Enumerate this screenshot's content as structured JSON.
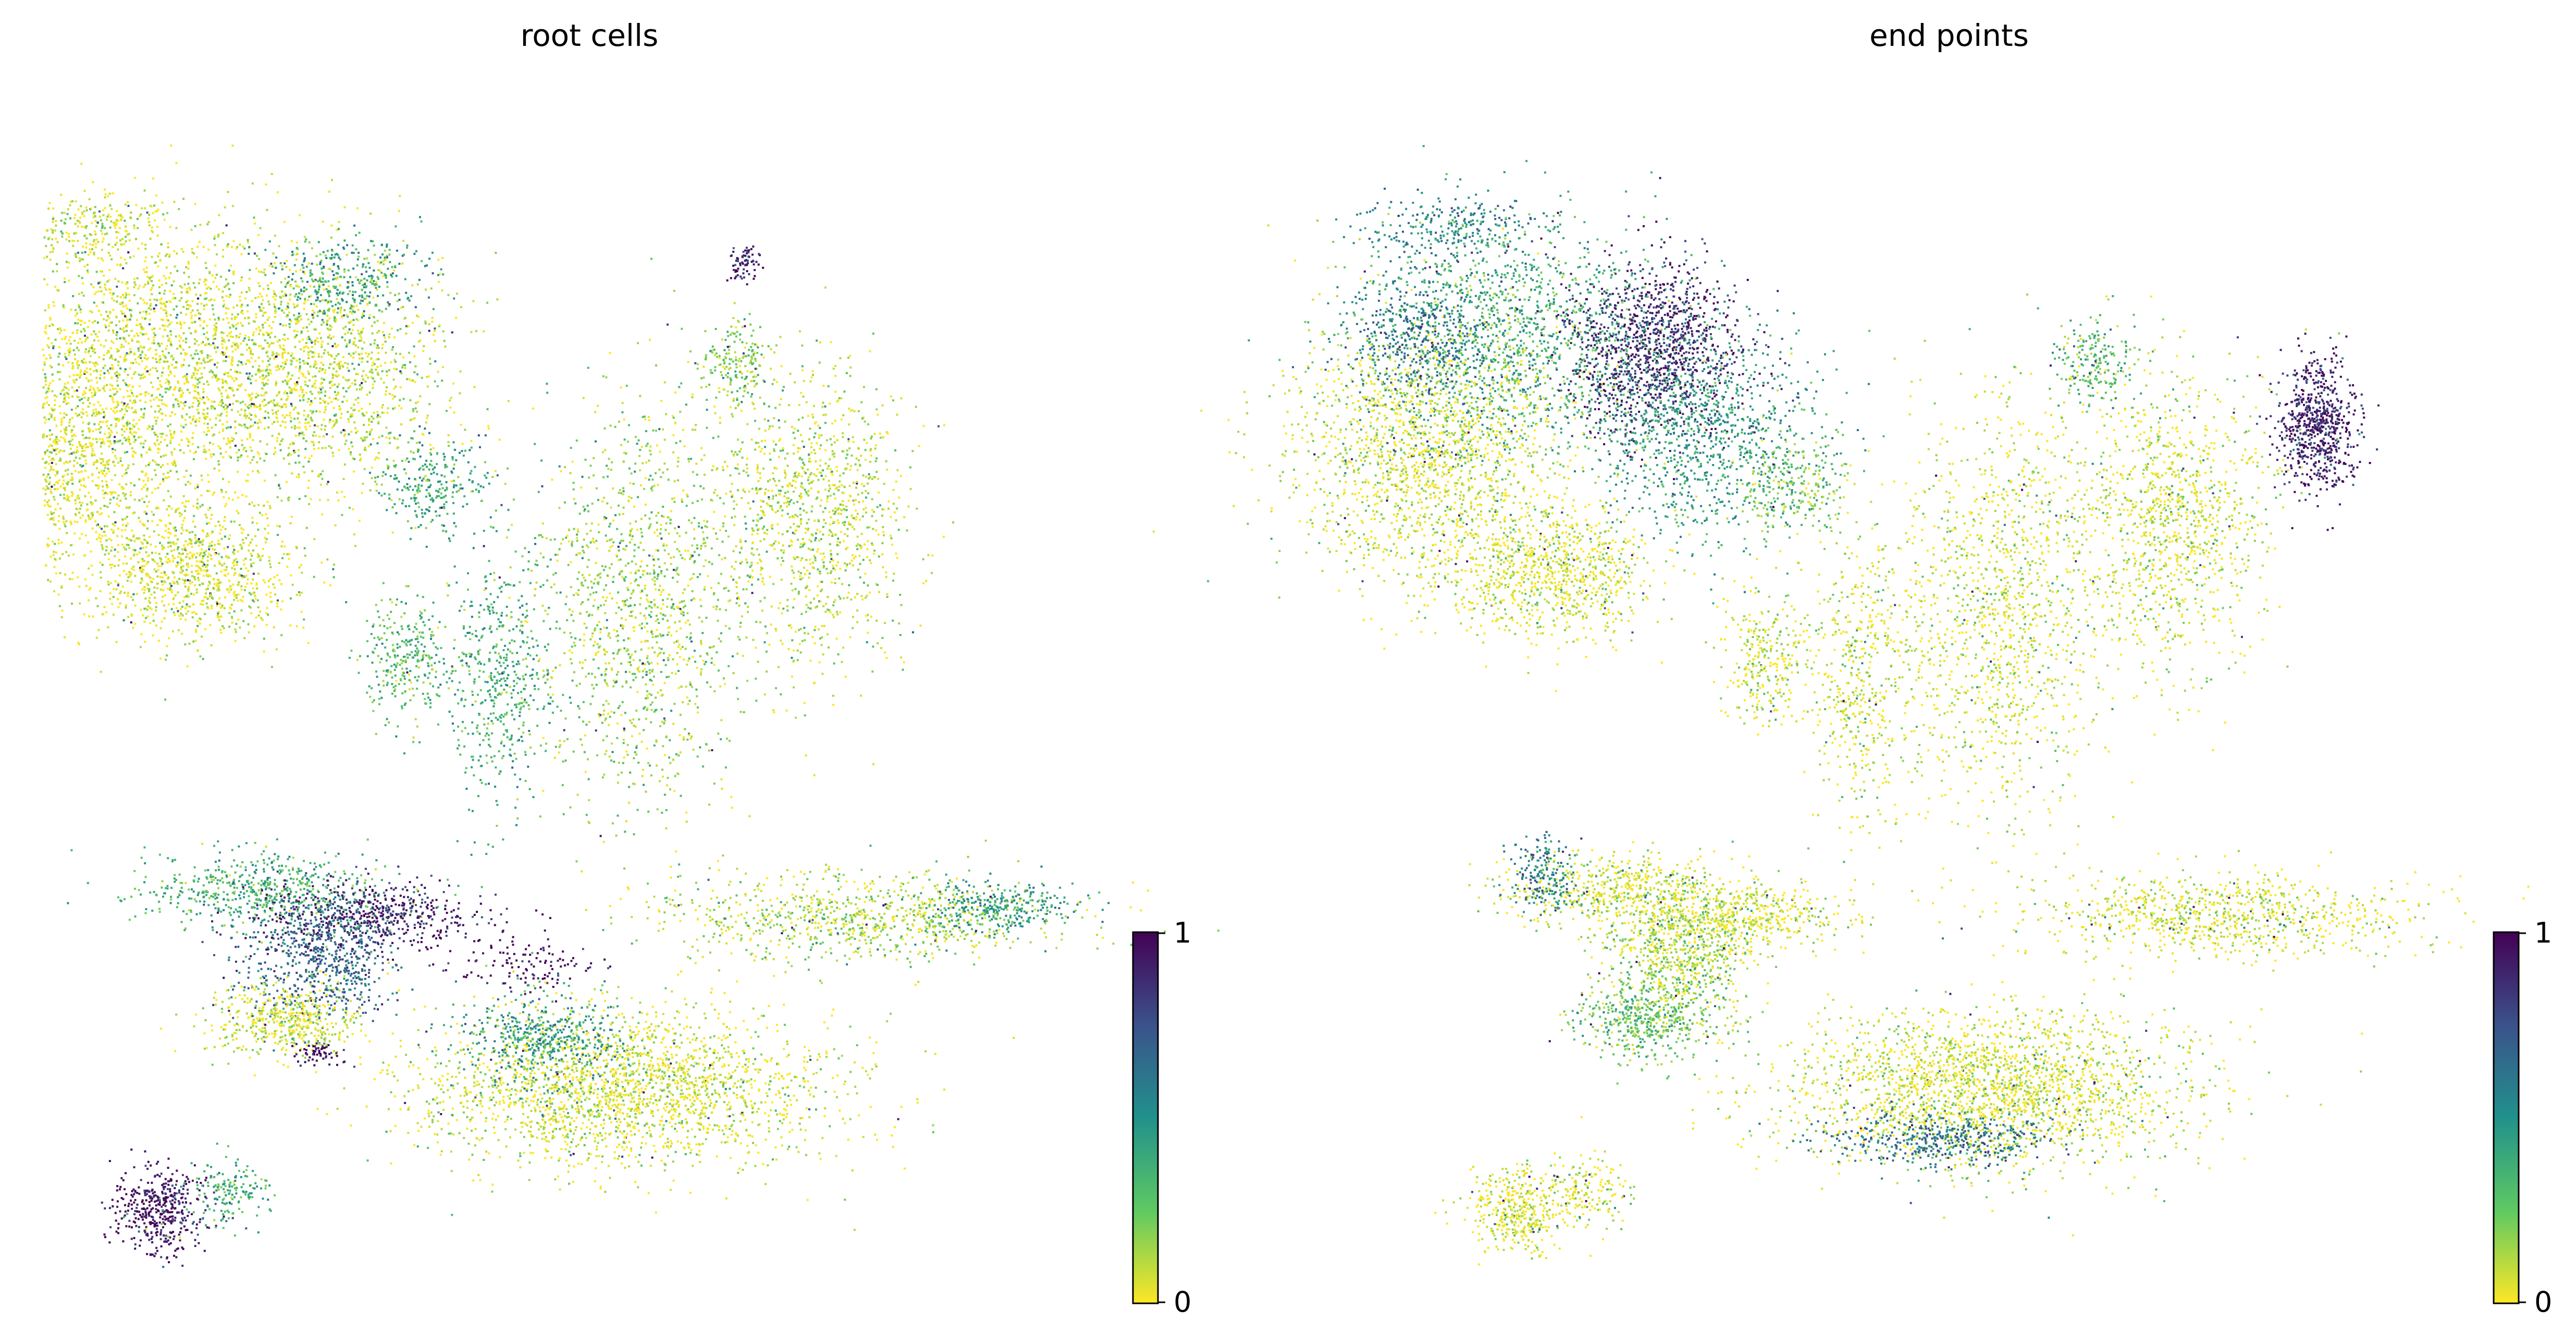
{
  "chart_data": [
    {
      "type": "scatter",
      "title": "root cells",
      "xlabel": "",
      "ylabel": "",
      "grid": false,
      "frame": false,
      "colormap": "viridis_r",
      "color_range": [
        0,
        1
      ],
      "colorbar_ticks": [
        "1",
        "0"
      ],
      "colorbar_colors": [
        "#440154",
        "#3b528b",
        "#21918c",
        "#5ec962",
        "#fde725"
      ],
      "clusters": [
        {
          "x": -6.0,
          "y": 5.6,
          "rx": 1.0,
          "ry": 0.4,
          "n": 260,
          "v": 0.05
        },
        {
          "x": -5.2,
          "y": 4.3,
          "rx": 1.8,
          "ry": 1.4,
          "n": 1400,
          "v": 0.05
        },
        {
          "x": -6.3,
          "y": 3.0,
          "rx": 1.6,
          "ry": 1.5,
          "n": 1700,
          "v": 0.03
        },
        {
          "x": -3.4,
          "y": 3.9,
          "rx": 1.6,
          "ry": 1.5,
          "n": 1500,
          "v": 0.08
        },
        {
          "x": -3.0,
          "y": 5.0,
          "rx": 0.9,
          "ry": 0.5,
          "n": 300,
          "v": 0.45
        },
        {
          "x": -2.0,
          "y": 2.6,
          "rx": 0.7,
          "ry": 0.6,
          "n": 250,
          "v": 0.4
        },
        {
          "x": -4.8,
          "y": 1.6,
          "rx": 1.2,
          "ry": 0.8,
          "n": 900,
          "v": 0.04
        },
        {
          "x": -2.3,
          "y": 0.6,
          "rx": 0.5,
          "ry": 0.8,
          "n": 300,
          "v": 0.3
        },
        {
          "x": -1.2,
          "y": 0.4,
          "rx": 0.6,
          "ry": 1.5,
          "n": 500,
          "v": 0.35
        },
        {
          "x": 0.4,
          "y": 1.2,
          "rx": 1.2,
          "ry": 2.4,
          "n": 1300,
          "v": 0.15
        },
        {
          "x": 2.4,
          "y": 2.2,
          "rx": 1.1,
          "ry": 1.7,
          "n": 1100,
          "v": 0.1
        },
        {
          "x": 1.5,
          "y": 4.0,
          "rx": 0.5,
          "ry": 0.5,
          "n": 200,
          "v": 0.2
        },
        {
          "x": -4.0,
          "y": -2.1,
          "rx": 1.4,
          "ry": 0.45,
          "n": 600,
          "v": 0.35
        },
        {
          "x": -2.7,
          "y": -2.4,
          "rx": 1.3,
          "ry": 0.4,
          "n": 550,
          "v": 0.92
        },
        {
          "x": -3.3,
          "y": -2.9,
          "rx": 0.9,
          "ry": 0.7,
          "n": 650,
          "v": 0.7
        },
        {
          "x": -3.7,
          "y": -3.6,
          "rx": 0.9,
          "ry": 0.45,
          "n": 500,
          "v": 0.06
        },
        {
          "x": 0.2,
          "y": -4.4,
          "rx": 2.4,
          "ry": 0.9,
          "n": 2300,
          "v": 0.05
        },
        {
          "x": -0.7,
          "y": -3.8,
          "rx": 1.0,
          "ry": 0.5,
          "n": 450,
          "v": 0.45
        },
        {
          "x": 3.0,
          "y": -2.4,
          "rx": 2.3,
          "ry": 0.5,
          "n": 900,
          "v": 0.12
        },
        {
          "x": 4.6,
          "y": -2.3,
          "rx": 0.8,
          "ry": 0.3,
          "n": 300,
          "v": 0.45
        },
        {
          "x": -5.2,
          "y": -5.8,
          "rx": 0.5,
          "ry": 0.5,
          "n": 420,
          "v": 0.97
        },
        {
          "x": -4.4,
          "y": -5.6,
          "rx": 0.5,
          "ry": 0.4,
          "n": 160,
          "v": 0.35
        },
        {
          "x": 1.6,
          "y": 5.2,
          "rx": 0.18,
          "ry": 0.2,
          "n": 70,
          "v": 0.95
        },
        {
          "x": -3.3,
          "y": -4.0,
          "rx": 0.3,
          "ry": 0.15,
          "n": 60,
          "v": 0.98
        },
        {
          "x": -1.0,
          "y": -3.0,
          "rx": 0.8,
          "ry": 0.3,
          "n": 120,
          "v": 0.97
        }
      ]
    },
    {
      "type": "scatter",
      "title": "end points",
      "xlabel": "",
      "ylabel": "",
      "grid": false,
      "frame": false,
      "colormap": "viridis_r",
      "color_range": [
        0,
        1
      ],
      "colorbar_ticks": [
        "1",
        "0"
      ],
      "colorbar_colors": [
        "#440154",
        "#3b528b",
        "#21918c",
        "#5ec962",
        "#fde725"
      ],
      "clusters": [
        {
          "x": -6.0,
          "y": 5.6,
          "rx": 1.0,
          "ry": 0.4,
          "n": 260,
          "v": 0.55
        },
        {
          "x": -5.2,
          "y": 4.3,
          "rx": 1.8,
          "ry": 1.4,
          "n": 1400,
          "v": 0.35
        },
        {
          "x": -6.3,
          "y": 3.0,
          "rx": 1.6,
          "ry": 1.5,
          "n": 1700,
          "v": 0.05
        },
        {
          "x": -6.3,
          "y": 4.3,
          "rx": 0.9,
          "ry": 0.8,
          "n": 500,
          "v": 0.6
        },
        {
          "x": -3.6,
          "y": 4.2,
          "rx": 1.0,
          "ry": 1.0,
          "n": 1200,
          "v": 0.88
        },
        {
          "x": -3.0,
          "y": 3.2,
          "rx": 1.3,
          "ry": 1.2,
          "n": 1000,
          "v": 0.45
        },
        {
          "x": -2.0,
          "y": 2.6,
          "rx": 0.7,
          "ry": 0.6,
          "n": 250,
          "v": 0.2
        },
        {
          "x": -4.8,
          "y": 1.6,
          "rx": 1.2,
          "ry": 0.8,
          "n": 900,
          "v": 0.04
        },
        {
          "x": -2.3,
          "y": 0.6,
          "rx": 0.5,
          "ry": 0.8,
          "n": 300,
          "v": 0.06
        },
        {
          "x": -1.2,
          "y": 0.4,
          "rx": 0.6,
          "ry": 1.5,
          "n": 500,
          "v": 0.06
        },
        {
          "x": 0.4,
          "y": 1.2,
          "rx": 1.2,
          "ry": 2.4,
          "n": 1300,
          "v": 0.05
        },
        {
          "x": 2.4,
          "y": 2.2,
          "rx": 1.1,
          "ry": 1.7,
          "n": 1100,
          "v": 0.06
        },
        {
          "x": 1.5,
          "y": 4.0,
          "rx": 0.5,
          "ry": 0.5,
          "n": 200,
          "v": 0.3
        },
        {
          "x": 4.1,
          "y": 3.3,
          "rx": 0.45,
          "ry": 0.75,
          "n": 700,
          "v": 0.92
        },
        {
          "x": -4.0,
          "y": -2.1,
          "rx": 1.4,
          "ry": 0.45,
          "n": 600,
          "v": 0.06
        },
        {
          "x": -4.9,
          "y": -1.9,
          "rx": 0.4,
          "ry": 0.4,
          "n": 200,
          "v": 0.55
        },
        {
          "x": -2.7,
          "y": -2.4,
          "rx": 1.3,
          "ry": 0.4,
          "n": 550,
          "v": 0.05
        },
        {
          "x": -3.3,
          "y": -2.9,
          "rx": 0.9,
          "ry": 0.7,
          "n": 650,
          "v": 0.12
        },
        {
          "x": -3.7,
          "y": -3.6,
          "rx": 0.9,
          "ry": 0.45,
          "n": 500,
          "v": 0.25
        },
        {
          "x": 0.2,
          "y": -4.4,
          "rx": 2.4,
          "ry": 0.9,
          "n": 2300,
          "v": 0.05
        },
        {
          "x": -0.3,
          "y": -5.0,
          "rx": 1.3,
          "ry": 0.35,
          "n": 450,
          "v": 0.6
        },
        {
          "x": 3.0,
          "y": -2.4,
          "rx": 2.3,
          "ry": 0.5,
          "n": 900,
          "v": 0.04
        },
        {
          "x": -5.2,
          "y": -5.8,
          "rx": 0.6,
          "ry": 0.5,
          "n": 420,
          "v": 0.04
        },
        {
          "x": -4.4,
          "y": -5.6,
          "rx": 0.5,
          "ry": 0.4,
          "n": 160,
          "v": 0.04
        }
      ]
    }
  ]
}
